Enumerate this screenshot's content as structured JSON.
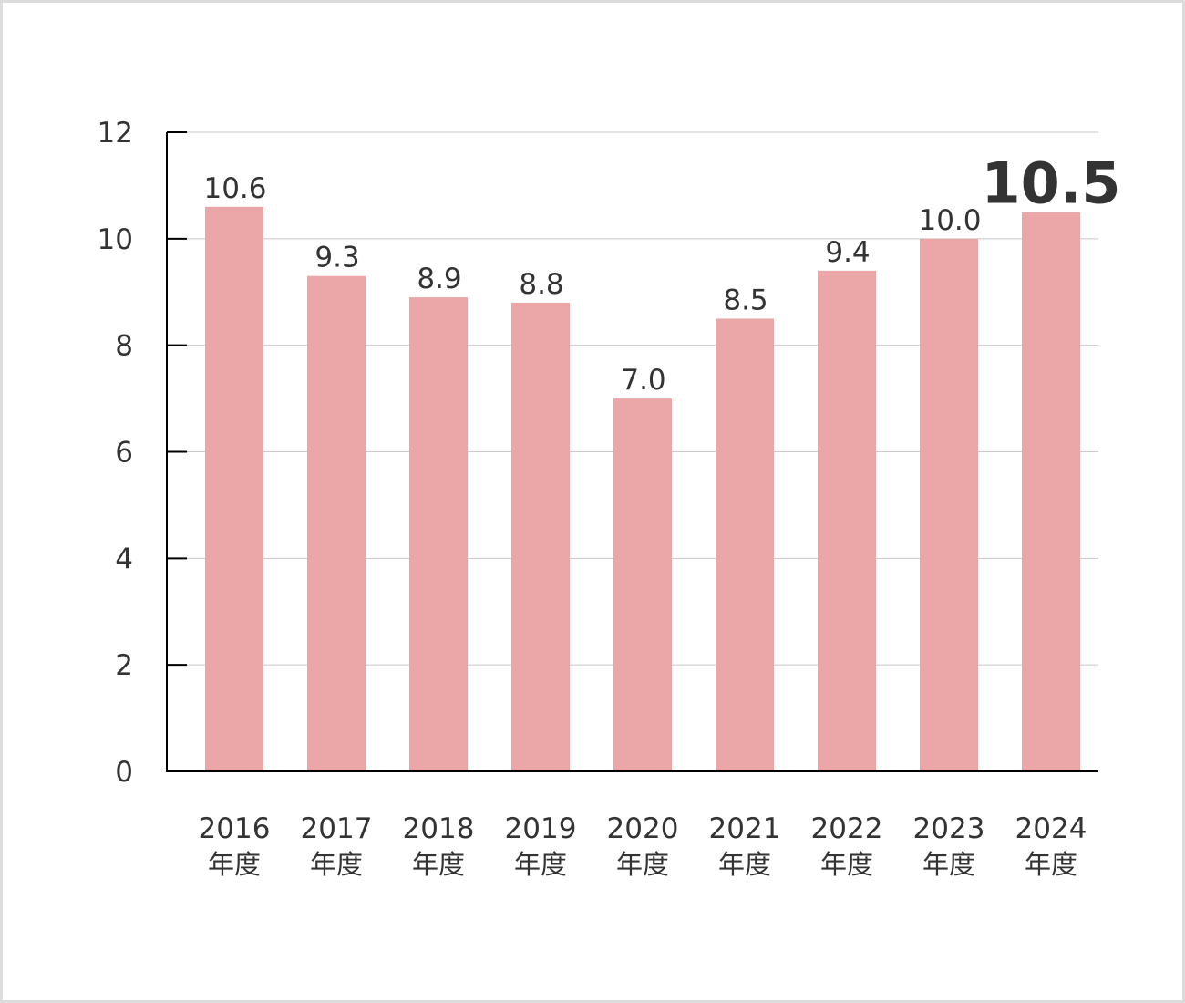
{
  "chart_data": {
    "type": "bar",
    "categories": [
      [
        "2016",
        "年度"
      ],
      [
        "2017",
        "年度"
      ],
      [
        "2018",
        "年度"
      ],
      [
        "2019",
        "年度"
      ],
      [
        "2020",
        "年度"
      ],
      [
        "2021",
        "年度"
      ],
      [
        "2022",
        "年度"
      ],
      [
        "2023",
        "年度"
      ],
      [
        "2024",
        "年度"
      ]
    ],
    "values": [
      10.6,
      9.3,
      8.9,
      8.8,
      7.0,
      8.5,
      9.4,
      10.0,
      10.5
    ],
    "data_labels": [
      "10.6",
      "9.3",
      "8.9",
      "8.8",
      "7.0",
      "8.5",
      "9.4",
      "10.0",
      "10.5"
    ],
    "highlight_index": 8,
    "title": "",
    "xlabel": "",
    "ylabel": "",
    "ylim": [
      0,
      12
    ],
    "yticks": [
      "0",
      "2",
      "4",
      "6",
      "8",
      "10",
      "12"
    ],
    "grid": true,
    "colors": {
      "bar": "#eba7a7",
      "grid": "#c8c8c8",
      "axis": "#000000",
      "text": "#333333"
    }
  }
}
